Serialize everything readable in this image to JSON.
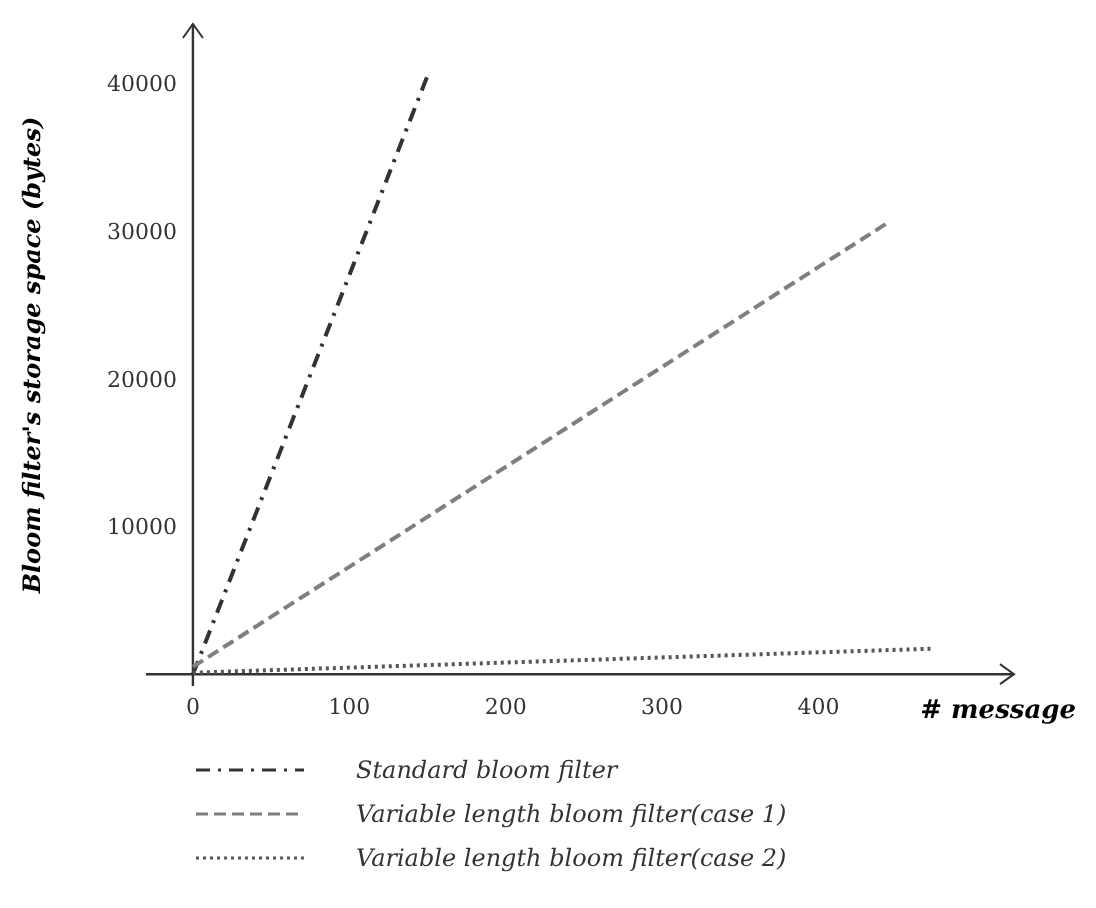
{
  "chart_data": {
    "type": "line",
    "xlabel": "# message",
    "ylabel": "Bloom filter's storage space (bytes)",
    "xlim": [
      -30,
      525
    ],
    "ylim": [
      -800,
      44000
    ],
    "xticks": [
      0,
      100,
      200,
      300,
      400
    ],
    "yticks": [
      10000,
      20000,
      30000,
      40000
    ],
    "legend": "bottom",
    "grid": false,
    "marker": "none",
    "series": [
      {
        "name": "Standard bloom filter",
        "color": "#333333",
        "line_style": "dashdot",
        "x": [
          0,
          150
        ],
        "values": [
          0,
          40500
        ]
      },
      {
        "name": "Variable length bloom filter(case 1)",
        "color": "#7f7f7f",
        "line_style": "dashed",
        "x": [
          0,
          445
        ],
        "values": [
          500,
          30600
        ]
      },
      {
        "name": "Variable length bloom filter(case 2)",
        "color": "#555555",
        "line_style": "dotted",
        "x": [
          0,
          474
        ],
        "values": [
          100,
          1730
        ]
      }
    ]
  }
}
